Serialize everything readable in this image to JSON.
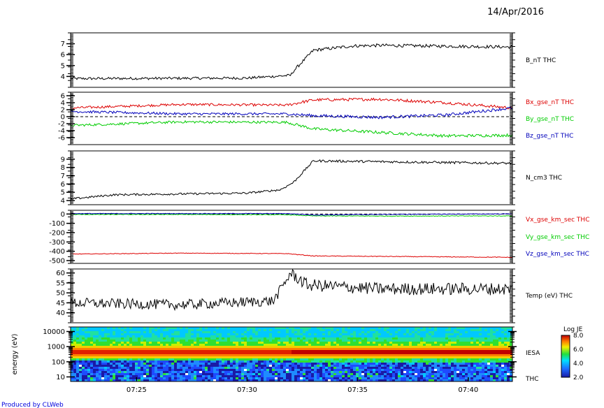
{
  "header": {
    "date": "14/Apr/2016"
  },
  "footer": {
    "credit": "Produced by CLWeb"
  },
  "colors": {
    "black": "#000000",
    "red": "#dd0000",
    "green": "#00cc00",
    "blue": "#0000bb"
  },
  "chart_data": [
    {
      "type": "line",
      "panel": "B_nT",
      "ylim": [
        3,
        8
      ],
      "yticks": [
        "4",
        "5",
        "6",
        "7"
      ],
      "ytick_values": [
        4,
        5,
        6,
        7
      ],
      "series": [
        {
          "name": "B_nT THC",
          "color": "#000000",
          "x": [
            7.367,
            7.5,
            7.533,
            7.535,
            7.55,
            7.58,
            7.6,
            7.7
          ],
          "y": [
            3.8,
            3.85,
            4.1,
            4.5,
            6.4,
            6.8,
            6.85,
            6.7
          ]
        }
      ],
      "labels": [
        {
          "text": "B_nT THC",
          "color": "#000000"
        }
      ]
    },
    {
      "type": "line",
      "panel": "B_gse",
      "ylim": [
        -8,
        7
      ],
      "yticks": [
        "6",
        "4",
        "2",
        "0",
        "-2",
        "-4",
        "-6"
      ],
      "ytick_values": [
        6,
        4,
        2,
        0,
        -2,
        -4,
        -6
      ],
      "zero_line": true,
      "series": [
        {
          "name": "Bx_gse_nT THC",
          "color": "#dd0000",
          "x": [
            7.367,
            7.45,
            7.53,
            7.55,
            7.6,
            7.65,
            7.7
          ],
          "y": [
            2.5,
            3.5,
            3.3,
            4.8,
            5.0,
            4.0,
            2.5
          ]
        },
        {
          "name": "By_gse_nT THC",
          "color": "#00cc00",
          "x": [
            7.367,
            7.45,
            7.53,
            7.55,
            7.6,
            7.65,
            7.7
          ],
          "y": [
            -2.5,
            -1.5,
            -1.6,
            -3.5,
            -4.5,
            -5.5,
            -5.3
          ]
        },
        {
          "name": "Bz_gse_nT THC",
          "color": "#0000bb",
          "x": [
            7.367,
            7.45,
            7.53,
            7.55,
            7.6,
            7.65,
            7.7
          ],
          "y": [
            1.5,
            0.8,
            0.8,
            0.3,
            -0.2,
            0.5,
            2.5
          ]
        }
      ],
      "labels": [
        {
          "text": "Bx_gse_nT THC",
          "color": "#dd0000"
        },
        {
          "text": "By_gse_nT THC",
          "color": "#00cc00"
        },
        {
          "text": "Bz_gse_nT THC",
          "color": "#0000bb"
        }
      ]
    },
    {
      "type": "line",
      "panel": "N_cm3",
      "ylim": [
        3.5,
        10
      ],
      "yticks": [
        "4",
        "5",
        "6",
        "7",
        "8",
        "9"
      ],
      "ytick_values": [
        4,
        5,
        6,
        7,
        8,
        9
      ],
      "series": [
        {
          "name": "N_cm3 THC",
          "color": "#000000",
          "x": [
            7.367,
            7.4,
            7.5,
            7.525,
            7.535,
            7.55,
            7.6,
            7.7
          ],
          "y": [
            4.2,
            4.7,
            4.9,
            5.3,
            6.2,
            8.8,
            8.7,
            8.5
          ]
        }
      ],
      "labels": [
        {
          "text": "N_cm3 THC",
          "color": "#000000"
        }
      ]
    },
    {
      "type": "line",
      "panel": "V_gse",
      "ylim": [
        -530,
        40
      ],
      "yticks": [
        "0",
        "-100",
        "-200",
        "-300",
        "-400",
        "-500"
      ],
      "ytick_values": [
        0,
        -100,
        -200,
        -300,
        -400,
        -500
      ],
      "zero_line": true,
      "series": [
        {
          "name": "Vx_gse_km_sec THC",
          "color": "#dd0000",
          "x": [
            7.367,
            7.45,
            7.53,
            7.55,
            7.6,
            7.7
          ],
          "y": [
            -430,
            -420,
            -425,
            -450,
            -455,
            -465
          ]
        },
        {
          "name": "Vy_gse_km_sec THC",
          "color": "#00cc00",
          "x": [
            7.367,
            7.45,
            7.53,
            7.55,
            7.6,
            7.7
          ],
          "y": [
            -5,
            -5,
            -8,
            -20,
            -22,
            -20
          ]
        },
        {
          "name": "Vz_gse_km_sec THC",
          "color": "#0000bb",
          "x": [
            7.367,
            7.45,
            7.53,
            7.55,
            7.6,
            7.7
          ],
          "y": [
            5,
            5,
            5,
            -10,
            -5,
            2
          ]
        }
      ],
      "labels": [
        {
          "text": "Vx_gse_km_sec THC",
          "color": "#dd0000"
        },
        {
          "text": "Vy_gse_km_sec THC",
          "color": "#00cc00"
        },
        {
          "text": "Vz_gse_km_sec THC",
          "color": "#0000bb"
        }
      ]
    },
    {
      "type": "line",
      "panel": "Temp",
      "ylim": [
        35,
        62
      ],
      "yticks": [
        "40",
        "45",
        "50",
        "55",
        "60"
      ],
      "ytick_values": [
        40,
        45,
        50,
        55,
        60
      ],
      "series": [
        {
          "name": "Temp (eV) THC",
          "color": "#000000",
          "x": [
            7.367,
            7.45,
            7.52,
            7.533,
            7.545,
            7.6,
            7.7
          ],
          "y": [
            45,
            44,
            46,
            60,
            54,
            52,
            52
          ]
        }
      ],
      "labels": [
        {
          "text": "Temp (eV) THC",
          "color": "#000000"
        }
      ]
    },
    {
      "type": "heatmap",
      "panel": "IESA",
      "ylabel": "energy (eV)",
      "ylog": true,
      "yticks": [
        "10",
        "100",
        "1000",
        "10000"
      ],
      "ytick_values": [
        10,
        100,
        1000,
        10000
      ],
      "xticks": [
        "07:25",
        "07:30",
        "07:35",
        "07:40"
      ],
      "xtick_values": [
        7.4167,
        7.5,
        7.5833,
        7.6667
      ],
      "xlim": [
        7.367,
        7.7
      ],
      "labels": [
        {
          "text": "IESA",
          "color": "#000000"
        },
        {
          "text": "THC",
          "color": "#000000"
        }
      ],
      "colorbar": {
        "title": "Log JE",
        "ticks": [
          "8.0",
          "6.0",
          "4.0",
          "2.0"
        ],
        "range": [
          2,
          8
        ]
      }
    }
  ]
}
